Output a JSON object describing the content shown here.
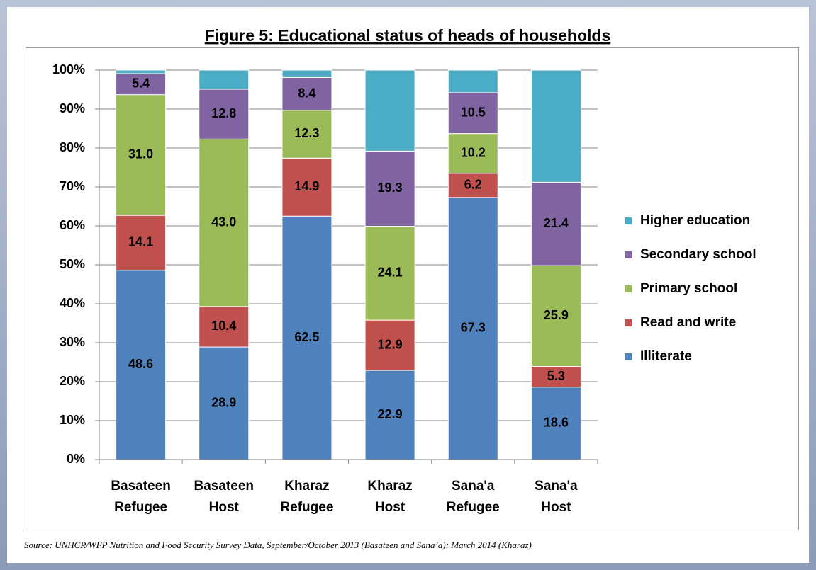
{
  "chart_data": {
    "type": "stacked_bar",
    "title": "Figure 5: Educational status of heads of households",
    "source": "Source: UNHCR/WFP Nutrition and Food Security Survey Data, September/October 2013 (Basateen and Sana’a); March 2014 (Kharaz)",
    "categories": [
      "Basateen Refugee",
      "Basateen Host",
      "Kharaz Refugee",
      "Kharaz Host",
      "Sana'a Refugee",
      "Sana'a Host"
    ],
    "series": [
      {
        "name": "Illiterate",
        "color": "#4f81bd",
        "values": [
          48.6,
          28.9,
          62.5,
          22.9,
          67.3,
          18.6
        ],
        "value_labels": [
          "48.6",
          "28.9",
          "62.5",
          "22.9",
          "67.3",
          "18.6"
        ]
      },
      {
        "name": "Read and write",
        "color": "#c0504d",
        "values": [
          14.1,
          10.4,
          14.9,
          12.9,
          6.2,
          5.3
        ],
        "value_labels": [
          "14.1",
          "10.4",
          "14.9",
          "12.9",
          "6.2",
          "5.3"
        ]
      },
      {
        "name": "Primary school",
        "color": "#9bbb59",
        "values": [
          31.0,
          43.0,
          12.3,
          24.1,
          10.2,
          25.9
        ],
        "value_labels": [
          "31.0",
          "43.0",
          "12.3",
          "24.1",
          "10.2",
          "25.9"
        ]
      },
      {
        "name": "Secondary school",
        "color": "#8064a2",
        "values": [
          5.4,
          12.8,
          8.4,
          19.3,
          10.5,
          21.4
        ],
        "value_labels": [
          "5.4",
          "12.8",
          "8.4",
          "19.3",
          "10.5",
          "21.4"
        ]
      },
      {
        "name": "Higher education",
        "color": "#4bacc6",
        "values": [
          0.9,
          4.9,
          1.9,
          20.8,
          5.8,
          28.8
        ]
      }
    ],
    "ylim": [
      0,
      100
    ],
    "yticks": [
      {
        "value": 0,
        "label": "0%"
      },
      {
        "value": 10,
        "label": "10%"
      },
      {
        "value": 20,
        "label": "20%"
      },
      {
        "value": 30,
        "label": "30%"
      },
      {
        "value": 40,
        "label": "40%"
      },
      {
        "value": 50,
        "label": "50%"
      },
      {
        "value": 60,
        "label": "60%"
      },
      {
        "value": 70,
        "label": "70%"
      },
      {
        "value": 80,
        "label": "80%"
      },
      {
        "value": 90,
        "label": "90%"
      },
      {
        "value": 100,
        "label": "100%"
      }
    ],
    "grid": true,
    "legend": "right"
  }
}
